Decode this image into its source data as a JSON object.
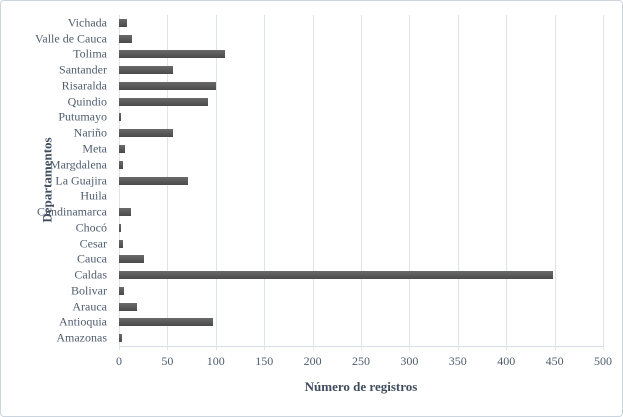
{
  "chart_data": {
    "type": "bar",
    "orientation": "horizontal",
    "title": "",
    "xlabel": "Número de registros",
    "ylabel": "Departamentos",
    "xlim": [
      0,
      500
    ],
    "xticks": [
      0,
      50,
      100,
      150,
      200,
      250,
      300,
      350,
      400,
      450,
      500
    ],
    "grid": "vertical-only",
    "legend": "none",
    "categories_top_to_bottom": [
      "Vichada",
      "Valle de Cauca",
      "Tolima",
      "Santander",
      "Risaralda",
      "Quindio",
      "Putumayo",
      "Nariño",
      "Meta",
      "Margdalena",
      "La Guajira",
      "Huila",
      "Cundinamarca",
      "Chocó",
      "Cesar",
      "Cauca",
      "Caldas",
      "Bolivar",
      "Arauca",
      "Antioquia",
      "Amazonas"
    ],
    "values": [
      8,
      13,
      110,
      56,
      100,
      92,
      2,
      56,
      6,
      4,
      71,
      0,
      12,
      2,
      4,
      26,
      448,
      5,
      19,
      97,
      3
    ],
    "bar_color": "#555555",
    "bar_gradient_top": "#6a6a6a",
    "bar_gradient_bottom": "#4a4a4a",
    "gridline_color": "#dde4ec",
    "tick_text_color": "#4f5d6e",
    "axis_title_color": "#3f4c5e",
    "background_color": "#ffffff",
    "border_color": "#ccd5de"
  }
}
